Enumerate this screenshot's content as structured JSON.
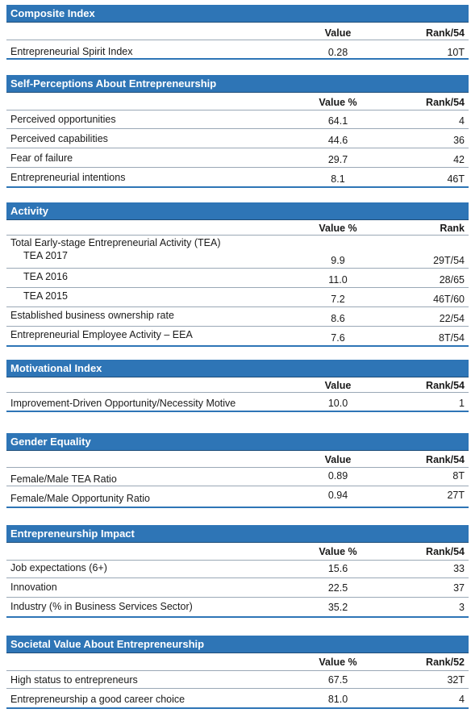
{
  "colors": {
    "section_header_bg": "#2e75b6",
    "rule": "#9aa8b6",
    "section_end_rule": "#2e75b6"
  },
  "sections": [
    {
      "title": "Composite Index",
      "value_header": "Value",
      "rank_header": "Rank/54",
      "rows": [
        {
          "label": "Entrepreneurial Spirit Index",
          "value": "0.28",
          "rank": "10T"
        }
      ]
    },
    {
      "title": "Self-Perceptions About Entrepreneurship",
      "value_header": "Value %",
      "rank_header": "Rank/54",
      "rows": [
        {
          "label": "Perceived opportunities",
          "value": "64.1",
          "rank": "4"
        },
        {
          "label": "Perceived capabilities",
          "value": "44.6",
          "rank": "36"
        },
        {
          "label": "Fear of failure",
          "value": "29.7",
          "rank": "42"
        },
        {
          "label": "Entrepreneurial intentions",
          "value": "8.1",
          "rank": "46T"
        }
      ]
    },
    {
      "title": "Activity",
      "value_header": "Value %",
      "rank_header": "Rank",
      "group_label": "Total Early-stage Entrepreneurial Activity (TEA)",
      "rows": [
        {
          "label": "TEA 2017",
          "value": "9.9",
          "rank": "29T/54"
        },
        {
          "label": "TEA 2016",
          "value": "11.0",
          "rank": "28/65"
        },
        {
          "label": "TEA 2015",
          "value": "7.2",
          "rank": "46T/60"
        },
        {
          "label": "Established business ownership rate",
          "value": "8.6",
          "rank": "22/54"
        },
        {
          "label": "Entrepreneurial Employee Activity – EEA",
          "value": "7.6",
          "rank": "8T/54"
        }
      ]
    },
    {
      "title": "Motivational Index",
      "value_header": "Value",
      "rank_header": "Rank/54",
      "rows": [
        {
          "label": "Improvement-Driven Opportunity/Necessity Motive",
          "value": "10.0",
          "rank": "1"
        }
      ]
    },
    {
      "title": "Gender Equality",
      "value_header": "Value",
      "rank_header": "Rank/54",
      "rows": [
        {
          "label": "Female/Male TEA Ratio",
          "value": "0.89",
          "rank": "8T"
        },
        {
          "label": "Female/Male Opportunity Ratio",
          "value": "0.94",
          "rank": "27T"
        }
      ]
    },
    {
      "title": "Entrepreneurship Impact",
      "value_header": "Value %",
      "rank_header": "Rank/54",
      "rows": [
        {
          "label": "Job expectations (6+)",
          "value": "15.6",
          "rank": "33"
        },
        {
          "label": "Innovation",
          "value": "22.5",
          "rank": "37"
        },
        {
          "label": "Industry (% in Business Services Sector)",
          "value": "35.2",
          "rank": "3"
        }
      ]
    },
    {
      "title": "Societal Value About Entrepreneurship",
      "value_header": "Value %",
      "rank_header": "Rank/52",
      "rows": [
        {
          "label": "High status to entrepreneurs",
          "value": "67.5",
          "rank": "32T"
        },
        {
          "label": "Entrepreneurship a good career choice",
          "value": "81.0",
          "rank": "4"
        }
      ]
    }
  ]
}
